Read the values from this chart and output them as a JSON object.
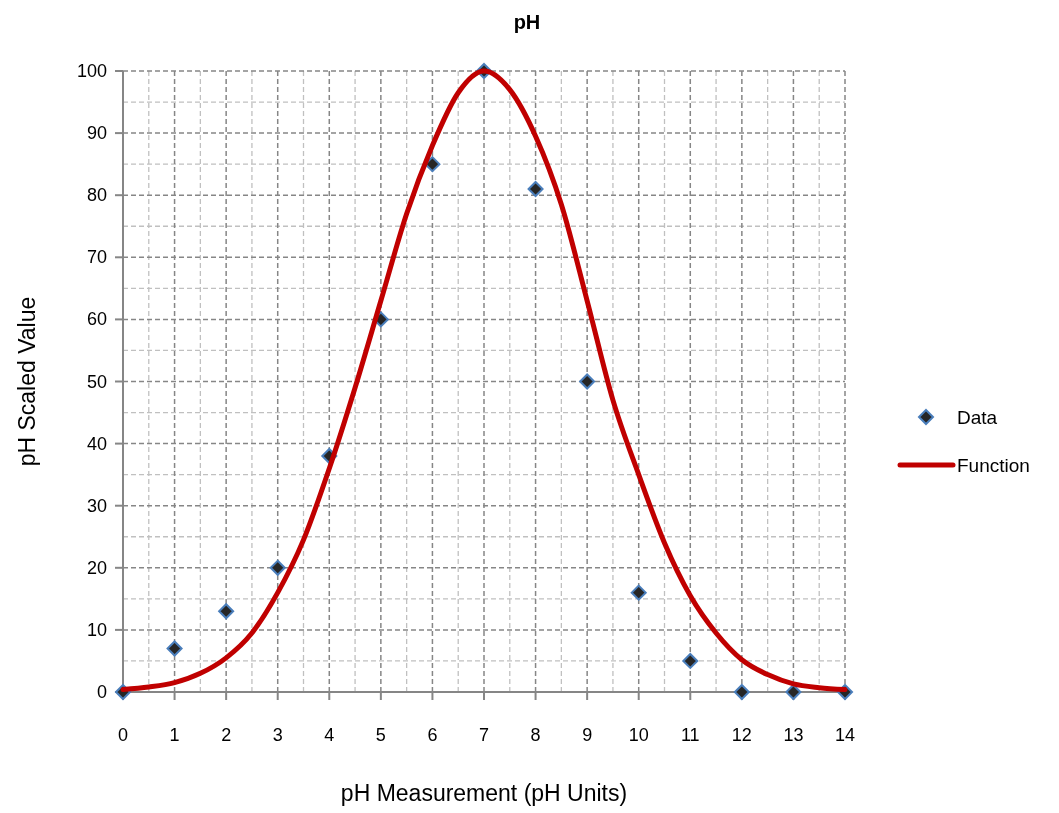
{
  "chart_data": {
    "type": "scatter",
    "title": "pH",
    "xlabel": "pH Measurement (pH Units)",
    "ylabel": "pH Scaled Value",
    "xlim": [
      0,
      14
    ],
    "xticks": [
      0,
      1,
      2,
      3,
      4,
      5,
      6,
      7,
      8,
      9,
      10,
      11,
      12,
      13,
      14
    ],
    "ylim": [
      0,
      100
    ],
    "yticks": [
      0,
      10,
      20,
      30,
      40,
      50,
      60,
      70,
      80,
      90,
      100
    ],
    "grid": true,
    "legend": "right",
    "series": [
      {
        "name": "Data",
        "marker": "diamond",
        "color": "#262626",
        "x": [
          0,
          1,
          2,
          3,
          4,
          5,
          6,
          7,
          8,
          9,
          10,
          11,
          12,
          13,
          14
        ],
        "values": [
          0,
          7,
          13,
          20,
          38,
          60,
          85,
          100,
          81,
          50,
          16,
          5,
          0,
          0,
          0
        ]
      },
      {
        "name": "Function",
        "type": "line",
        "marker": "none",
        "line_style": "solid",
        "color": "#c00000",
        "x": [
          0,
          0.5,
          1,
          1.5,
          2,
          2.5,
          3,
          3.5,
          4,
          4.5,
          5,
          5.5,
          6,
          6.5,
          7,
          7.5,
          8,
          8.5,
          9,
          9.5,
          10,
          10.5,
          11,
          11.5,
          12,
          12.5,
          13,
          13.5,
          14
        ],
        "values": [
          0.4,
          0.8,
          1.5,
          3,
          5.5,
          9.5,
          16,
          24.5,
          36,
          49,
          63,
          77,
          88,
          96.5,
          100,
          97,
          89.5,
          78.5,
          63,
          47,
          35,
          24,
          15.5,
          9.5,
          5.2,
          2.8,
          1.3,
          0.7,
          0.4
        ]
      }
    ]
  }
}
